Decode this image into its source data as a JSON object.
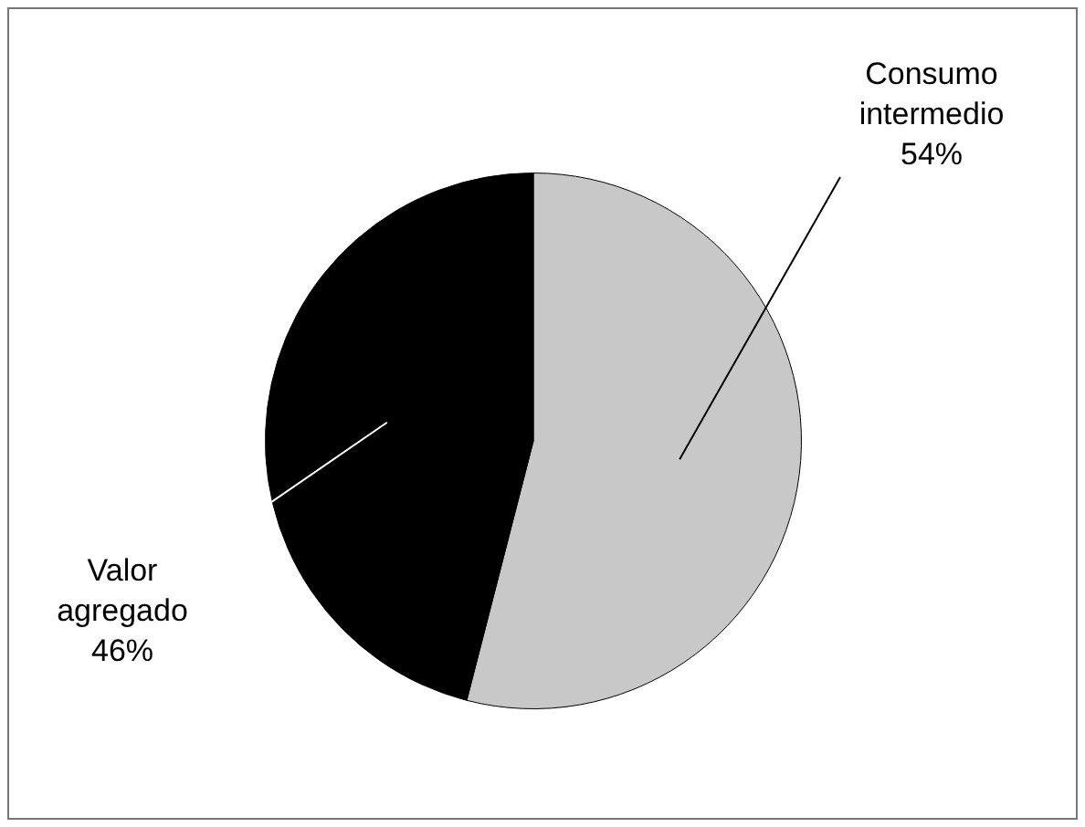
{
  "chart_data": {
    "type": "pie",
    "categories": [
      "Consumo intermedio",
      "Valor agregado"
    ],
    "values": [
      54,
      46
    ],
    "colors": [
      "#c8c8c8",
      "#000000"
    ],
    "value_labels": [
      "54%",
      "46%"
    ],
    "legend": false
  }
}
